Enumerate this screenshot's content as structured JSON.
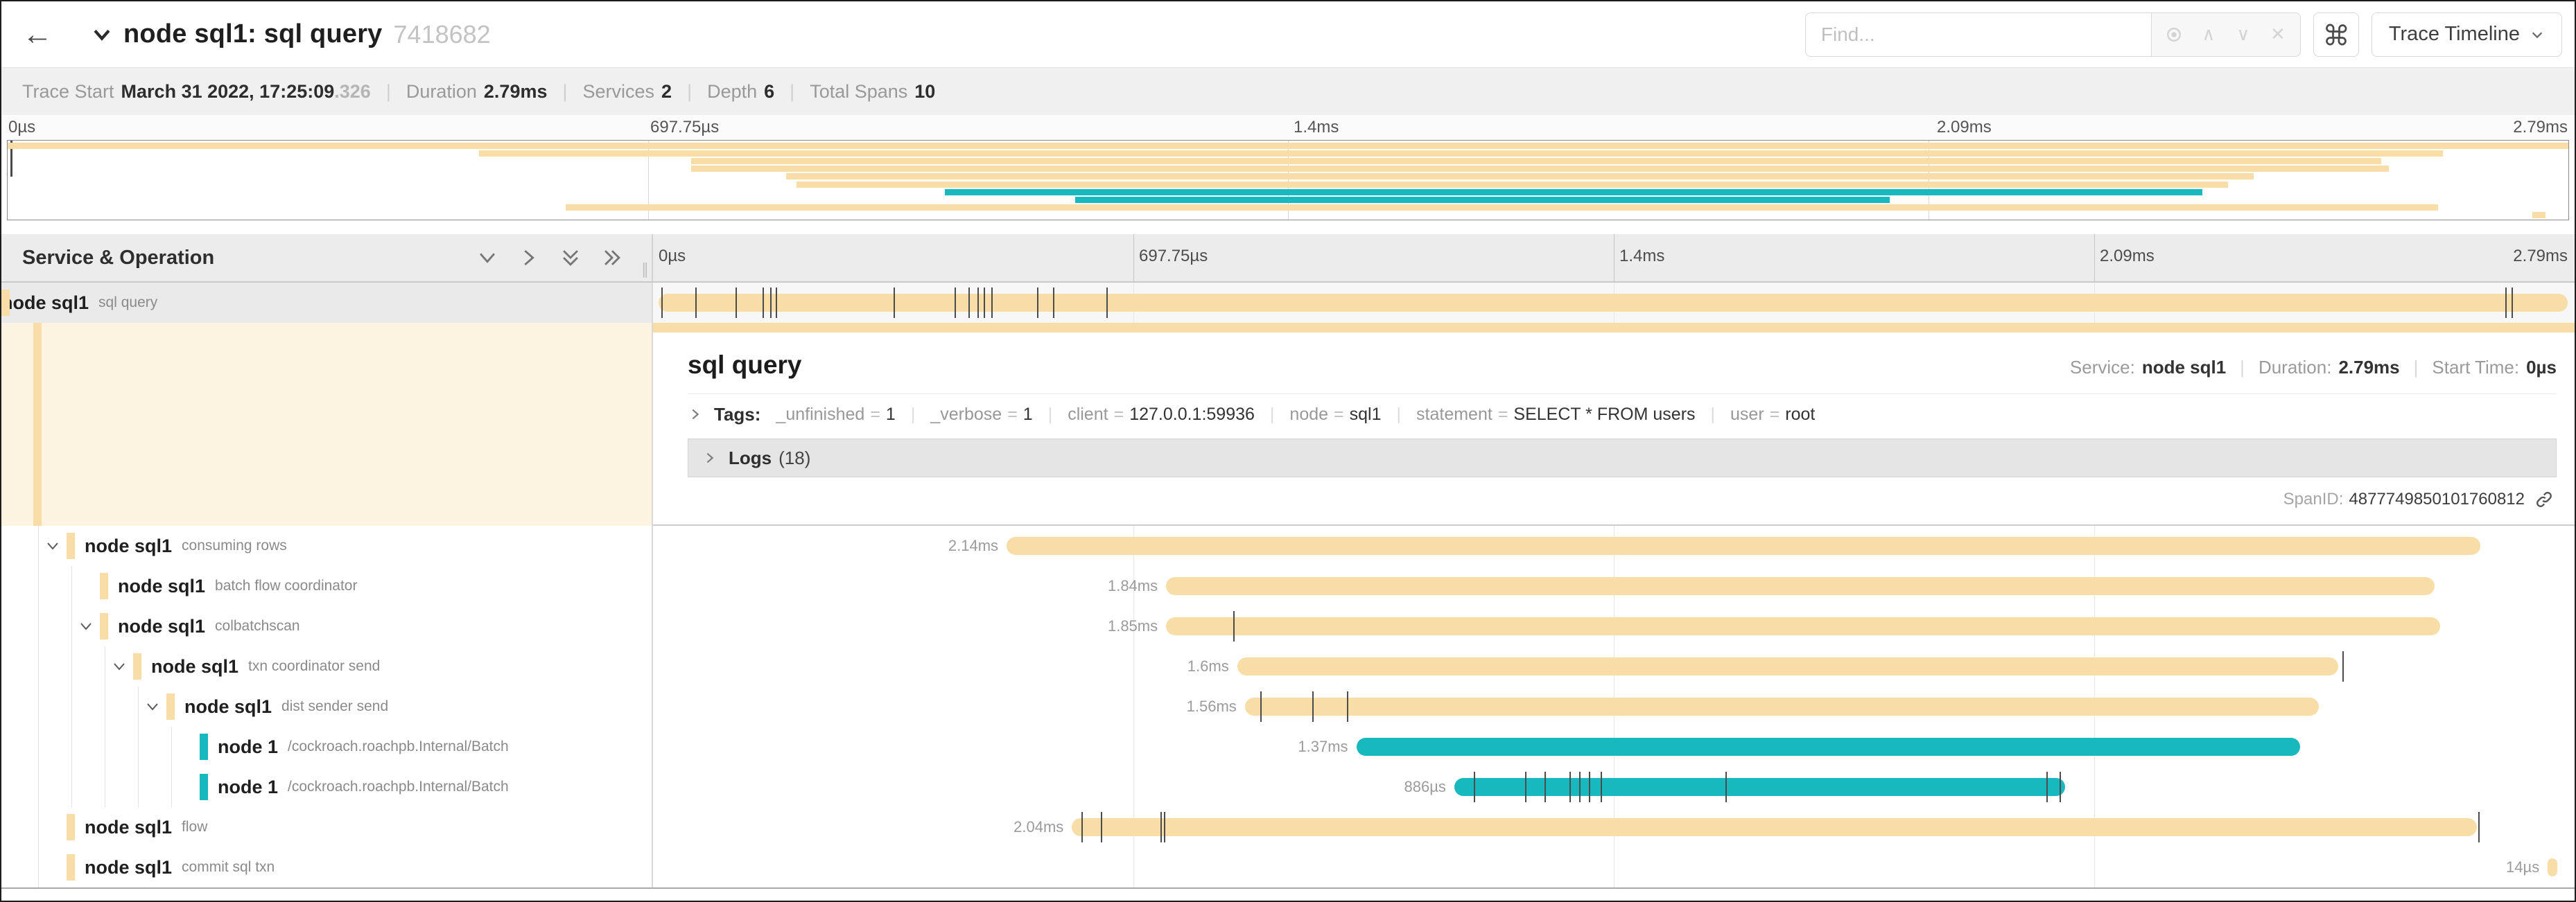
{
  "colors": {
    "tan": "#F8DDA6",
    "teal": "#17B8BE",
    "tick": "#4c4c4c"
  },
  "header": {
    "back": "←",
    "title": "node sql1: sql query",
    "trace_id": "7418682",
    "find_placeholder": "Find...",
    "prev_glyph": "∧",
    "next_glyph": "∨",
    "clear_glyph": "✕",
    "view_selector": "Trace Timeline"
  },
  "trace_info": {
    "trace_start_label": "Trace Start",
    "trace_start_value": "March 31 2022, 17:25:09",
    "trace_start_ms": ".326",
    "duration_label": "Duration",
    "duration_value": "2.79ms",
    "services_label": "Services",
    "services_value": "2",
    "depth_label": "Depth",
    "depth_value": "6",
    "total_spans_label": "Total Spans",
    "total_spans_value": "10"
  },
  "timeline": {
    "left_header": "Service & Operation",
    "ticks": [
      "0µs",
      "697.75µs",
      "1.4ms",
      "2.09ms",
      "2.79ms"
    ],
    "tick_positions": [
      0,
      25,
      50,
      75,
      100
    ],
    "grip": "∥"
  },
  "root_row": {
    "service": "node sql1",
    "operation": "sql query",
    "color": "tan",
    "start": 0,
    "width": 100,
    "ticks": [
      0.43,
      2.2,
      4.3,
      5.7,
      6.1,
      6.4,
      12.5,
      15.7,
      16.4,
      16.9,
      17.2,
      17.6,
      20.0,
      20.8,
      23.6,
      96.4,
      96.7
    ]
  },
  "rows": [
    {
      "service": "node sql1",
      "operation": "consuming rows",
      "level": 1,
      "color": "tan",
      "expandable": true,
      "start": 18.4,
      "width": 76.7,
      "label": "2.14ms",
      "ticks": []
    },
    {
      "service": "node sql1",
      "operation": "batch flow coordinator",
      "level": 2,
      "color": "tan",
      "expandable": false,
      "start": 26.7,
      "width": 66.0,
      "label": "1.84ms",
      "ticks": []
    },
    {
      "service": "node sql1",
      "operation": "colbatchscan",
      "level": 2,
      "color": "tan",
      "expandable": true,
      "start": 26.7,
      "width": 66.3,
      "label": "1.85ms",
      "ticks": [
        30.2
      ]
    },
    {
      "service": "node sql1",
      "operation": "txn coordinator send",
      "level": 3,
      "color": "tan",
      "expandable": true,
      "start": 30.4,
      "width": 57.3,
      "label": "1.6ms",
      "ticks": [
        87.9
      ]
    },
    {
      "service": "node sql1",
      "operation": "dist sender send",
      "level": 4,
      "color": "tan",
      "expandable": true,
      "start": 30.8,
      "width": 55.9,
      "label": "1.56ms",
      "ticks": [
        31.6,
        34.3,
        36.1
      ]
    },
    {
      "service": "node 1",
      "operation": "/cockroach.roachpb.Internal/Batch",
      "level": 5,
      "color": "teal",
      "expandable": false,
      "start": 36.6,
      "width": 49.1,
      "label": "1.37ms",
      "ticks": []
    },
    {
      "service": "node 1",
      "operation": "/cockroach.roachpb.Internal/Batch",
      "level": 5,
      "color": "teal",
      "expandable": false,
      "start": 41.7,
      "width": 31.8,
      "label": "886µs",
      "ticks": [
        42.7,
        45.4,
        46.4,
        47.7,
        48.2,
        48.7,
        49.3,
        55.8,
        72.5,
        73.2
      ]
    },
    {
      "service": "node sql1",
      "operation": "flow",
      "level": 1,
      "color": "tan",
      "expandable": false,
      "start": 21.8,
      "width": 73.1,
      "label": "2.04ms",
      "ticks": [
        22.3,
        23.3,
        26.4,
        26.6,
        95.0
      ]
    },
    {
      "service": "node sql1",
      "operation": "commit sql txn",
      "level": 1,
      "color": "tan",
      "expandable": false,
      "start": 98.6,
      "width": 0.5,
      "label": "14µs",
      "ticks": []
    }
  ],
  "detail": {
    "title": "sql query",
    "service_label": "Service:",
    "service_value": "node sql1",
    "duration_label": "Duration:",
    "duration_value": "2.79ms",
    "start_time_label": "Start Time:",
    "start_time_value": "0µs",
    "tags_label": "Tags:",
    "tags": [
      {
        "key": "_unfinished",
        "value": "1"
      },
      {
        "key": "_verbose",
        "value": "1"
      },
      {
        "key": "client",
        "value": "127.0.0.1:59936"
      },
      {
        "key": "node",
        "value": "sql1"
      },
      {
        "key": "statement",
        "value": "SELECT * FROM users"
      },
      {
        "key": "user",
        "value": "root"
      }
    ],
    "logs_label": "Logs",
    "logs_count": "(18)",
    "span_id_label": "SpanID:",
    "span_id_value": "4877749850101760812"
  }
}
